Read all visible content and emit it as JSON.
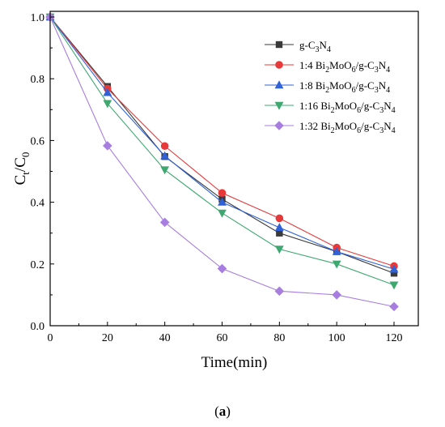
{
  "chart_data": {
    "type": "line",
    "xlabel": "Time(min)",
    "ylabel": {
      "main": "C",
      "sub1": "t",
      "sep": "/C",
      "sub2": "0"
    },
    "xlim": [
      0,
      130
    ],
    "ylim": [
      0,
      1.05
    ],
    "xticks": [
      0,
      20,
      40,
      60,
      80,
      100,
      120
    ],
    "xtick_labels": [
      "0",
      "20",
      "40",
      "60",
      "80",
      "100",
      "120"
    ],
    "yticks": [
      0.0,
      0.2,
      0.4,
      0.6,
      0.8,
      1.0
    ],
    "ytick_labels": [
      "0.0",
      "0.2",
      "0.4",
      "0.6",
      "0.8",
      "1.0"
    ],
    "legend_position": "top-right",
    "grid": false,
    "x": [
      0,
      20,
      40,
      60,
      80,
      100,
      120
    ],
    "series": [
      {
        "name": "g-C3N4",
        "name_parts": [
          [
            "g-C",
            false
          ],
          [
            "3",
            true
          ],
          [
            "N",
            false
          ],
          [
            "4",
            true
          ]
        ],
        "marker": "square",
        "color": "#3a3a3a",
        "values": [
          1.0,
          0.775,
          0.548,
          0.41,
          0.3,
          0.24,
          0.17
        ]
      },
      {
        "name": "1:4 Bi2MoO6/g-C3N4",
        "name_parts": [
          [
            "1:4 Bi",
            false
          ],
          [
            "2",
            true
          ],
          [
            "MoO",
            false
          ],
          [
            "6",
            true
          ],
          [
            "/g-C",
            false
          ],
          [
            "3",
            true
          ],
          [
            "N",
            false
          ],
          [
            "4",
            true
          ]
        ],
        "marker": "circle",
        "color": "#e8393a",
        "values": [
          1.0,
          0.768,
          0.582,
          0.43,
          0.348,
          0.253,
          0.193
        ]
      },
      {
        "name": "1:8 Bi2MoO6/g-C3N4",
        "name_parts": [
          [
            "1:8 Bi",
            false
          ],
          [
            "2",
            true
          ],
          [
            "MoO",
            false
          ],
          [
            "6",
            true
          ],
          [
            "/g-C",
            false
          ],
          [
            "3",
            true
          ],
          [
            "N",
            false
          ],
          [
            "4",
            true
          ]
        ],
        "marker": "triangle-up",
        "color": "#2f62d8",
        "values": [
          1.0,
          0.755,
          0.55,
          0.4,
          0.318,
          0.24,
          0.183
        ]
      },
      {
        "name": "1:16 Bi2MoO6/g-C3N4",
        "name_parts": [
          [
            "1:16 Bi",
            false
          ],
          [
            "2",
            true
          ],
          [
            "MoO",
            false
          ],
          [
            "6",
            true
          ],
          [
            "/g-C",
            false
          ],
          [
            "3",
            true
          ],
          [
            "N",
            false
          ],
          [
            "4",
            true
          ]
        ],
        "marker": "triangle-down",
        "color": "#3ea870",
        "values": [
          1.0,
          0.72,
          0.505,
          0.365,
          0.248,
          0.2,
          0.132
        ]
      },
      {
        "name": "1:32 Bi2MoO6/g-C3N4",
        "name_parts": [
          [
            "1:32 Bi",
            false
          ],
          [
            "2",
            true
          ],
          [
            "MoO",
            false
          ],
          [
            "6",
            true
          ],
          [
            "/g-C",
            false
          ],
          [
            "3",
            true
          ],
          [
            "N",
            false
          ],
          [
            "4",
            true
          ]
        ],
        "marker": "diamond",
        "color": "#a77ee0",
        "values": [
          1.0,
          0.583,
          0.335,
          0.185,
          0.112,
          0.1,
          0.062
        ]
      }
    ],
    "panel_label": {
      "open": "(",
      "letter": "a",
      "close": ")"
    }
  }
}
